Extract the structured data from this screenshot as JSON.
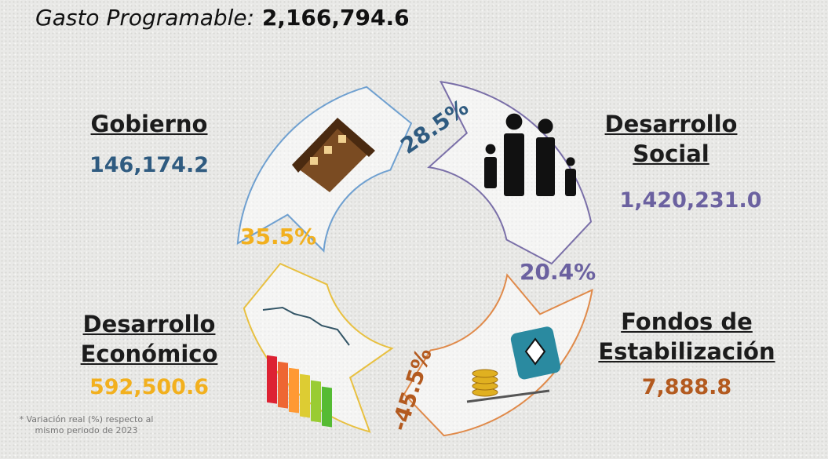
{
  "header": {
    "title": "Gasto Programable:",
    "total": "2,166,794.6"
  },
  "sections": [
    {
      "name": "Gobierno",
      "amount": "146,174.2",
      "change": "28.5%"
    },
    {
      "name": "Desarrollo Social",
      "amount": "1,420,231.0",
      "change": "20.4%"
    },
    {
      "name": "Fondos de Estabilización",
      "amount": "7,888.8",
      "change": "-45.5%"
    },
    {
      "name": "Desarrollo Económico",
      "amount": "592,500.6",
      "change": "35.5%"
    }
  ],
  "footnote": "* Variación real (%) respecto al mismo periodo de 2023"
}
